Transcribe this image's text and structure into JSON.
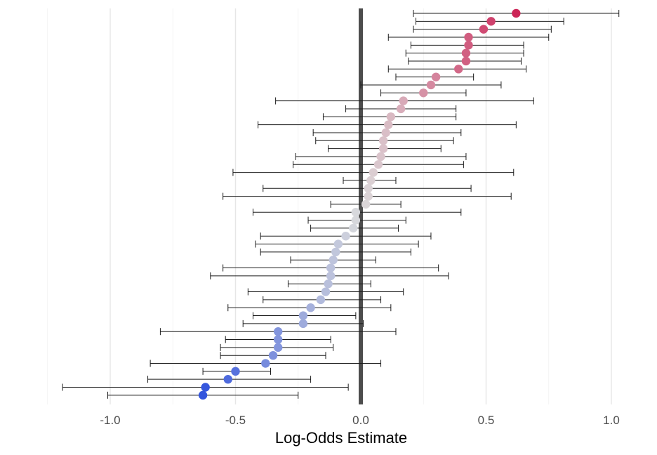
{
  "chart_data": {
    "type": "scatter",
    "subtype": "forest-plot",
    "title": "",
    "xlabel": "Log-Odds Estimate",
    "ylabel": "",
    "xlim": [
      -1.25,
      1.12
    ],
    "x_ticks": [
      -1.0,
      -0.5,
      0.0,
      0.5,
      1.0
    ],
    "x_tick_labels": [
      "-1.0",
      "-0.5",
      "0.0",
      "0.5",
      "1.0"
    ],
    "grid": "vertical",
    "reference_line": 0.0,
    "color_scale": {
      "negative": "#3355dd",
      "zero": "#dcdcdc",
      "positive": "#cc2255"
    },
    "points": [
      {
        "estimate": 0.62,
        "lower": 0.21,
        "upper": 1.03
      },
      {
        "estimate": 0.52,
        "lower": 0.22,
        "upper": 0.81
      },
      {
        "estimate": 0.49,
        "lower": 0.21,
        "upper": 0.76
      },
      {
        "estimate": 0.43,
        "lower": 0.11,
        "upper": 0.75
      },
      {
        "estimate": 0.43,
        "lower": 0.2,
        "upper": 0.65
      },
      {
        "estimate": 0.42,
        "lower": 0.18,
        "upper": 0.65
      },
      {
        "estimate": 0.42,
        "lower": 0.19,
        "upper": 0.64
      },
      {
        "estimate": 0.39,
        "lower": 0.11,
        "upper": 0.66
      },
      {
        "estimate": 0.3,
        "lower": 0.14,
        "upper": 0.45
      },
      {
        "estimate": 0.28,
        "lower": 0.0,
        "upper": 0.56
      },
      {
        "estimate": 0.25,
        "lower": 0.08,
        "upper": 0.42
      },
      {
        "estimate": 0.17,
        "lower": -0.34,
        "upper": 0.69
      },
      {
        "estimate": 0.16,
        "lower": -0.06,
        "upper": 0.38
      },
      {
        "estimate": 0.12,
        "lower": -0.15,
        "upper": 0.38
      },
      {
        "estimate": 0.11,
        "lower": -0.41,
        "upper": 0.62
      },
      {
        "estimate": 0.1,
        "lower": -0.19,
        "upper": 0.4
      },
      {
        "estimate": 0.09,
        "lower": -0.18,
        "upper": 0.37
      },
      {
        "estimate": 0.09,
        "lower": -0.13,
        "upper": 0.32
      },
      {
        "estimate": 0.08,
        "lower": -0.26,
        "upper": 0.42
      },
      {
        "estimate": 0.07,
        "lower": -0.27,
        "upper": 0.41
      },
      {
        "estimate": 0.05,
        "lower": -0.51,
        "upper": 0.61
      },
      {
        "estimate": 0.04,
        "lower": -0.07,
        "upper": 0.14
      },
      {
        "estimate": 0.03,
        "lower": -0.39,
        "upper": 0.44
      },
      {
        "estimate": 0.03,
        "lower": -0.55,
        "upper": 0.6
      },
      {
        "estimate": 0.02,
        "lower": -0.12,
        "upper": 0.16
      },
      {
        "estimate": -0.02,
        "lower": -0.43,
        "upper": 0.4
      },
      {
        "estimate": -0.02,
        "lower": -0.21,
        "upper": 0.18
      },
      {
        "estimate": -0.03,
        "lower": -0.2,
        "upper": 0.15
      },
      {
        "estimate": -0.06,
        "lower": -0.4,
        "upper": 0.28
      },
      {
        "estimate": -0.09,
        "lower": -0.42,
        "upper": 0.23
      },
      {
        "estimate": -0.1,
        "lower": -0.4,
        "upper": 0.2
      },
      {
        "estimate": -0.11,
        "lower": -0.28,
        "upper": 0.06
      },
      {
        "estimate": -0.12,
        "lower": -0.55,
        "upper": 0.31
      },
      {
        "estimate": -0.12,
        "lower": -0.6,
        "upper": 0.35
      },
      {
        "estimate": -0.13,
        "lower": -0.29,
        "upper": 0.04
      },
      {
        "estimate": -0.14,
        "lower": -0.45,
        "upper": 0.17
      },
      {
        "estimate": -0.16,
        "lower": -0.39,
        "upper": 0.08
      },
      {
        "estimate": -0.2,
        "lower": -0.53,
        "upper": 0.12
      },
      {
        "estimate": -0.23,
        "lower": -0.43,
        "upper": -0.02
      },
      {
        "estimate": -0.23,
        "lower": -0.47,
        "upper": 0.01
      },
      {
        "estimate": -0.33,
        "lower": -0.8,
        "upper": 0.14
      },
      {
        "estimate": -0.33,
        "lower": -0.54,
        "upper": -0.12
      },
      {
        "estimate": -0.33,
        "lower": -0.56,
        "upper": -0.11
      },
      {
        "estimate": -0.35,
        "lower": -0.56,
        "upper": -0.14
      },
      {
        "estimate": -0.38,
        "lower": -0.84,
        "upper": 0.08
      },
      {
        "estimate": -0.5,
        "lower": -0.63,
        "upper": -0.36
      },
      {
        "estimate": -0.53,
        "lower": -0.85,
        "upper": -0.2
      },
      {
        "estimate": -0.62,
        "lower": -1.19,
        "upper": -0.05
      },
      {
        "estimate": -0.63,
        "lower": -1.01,
        "upper": -0.25
      }
    ]
  }
}
